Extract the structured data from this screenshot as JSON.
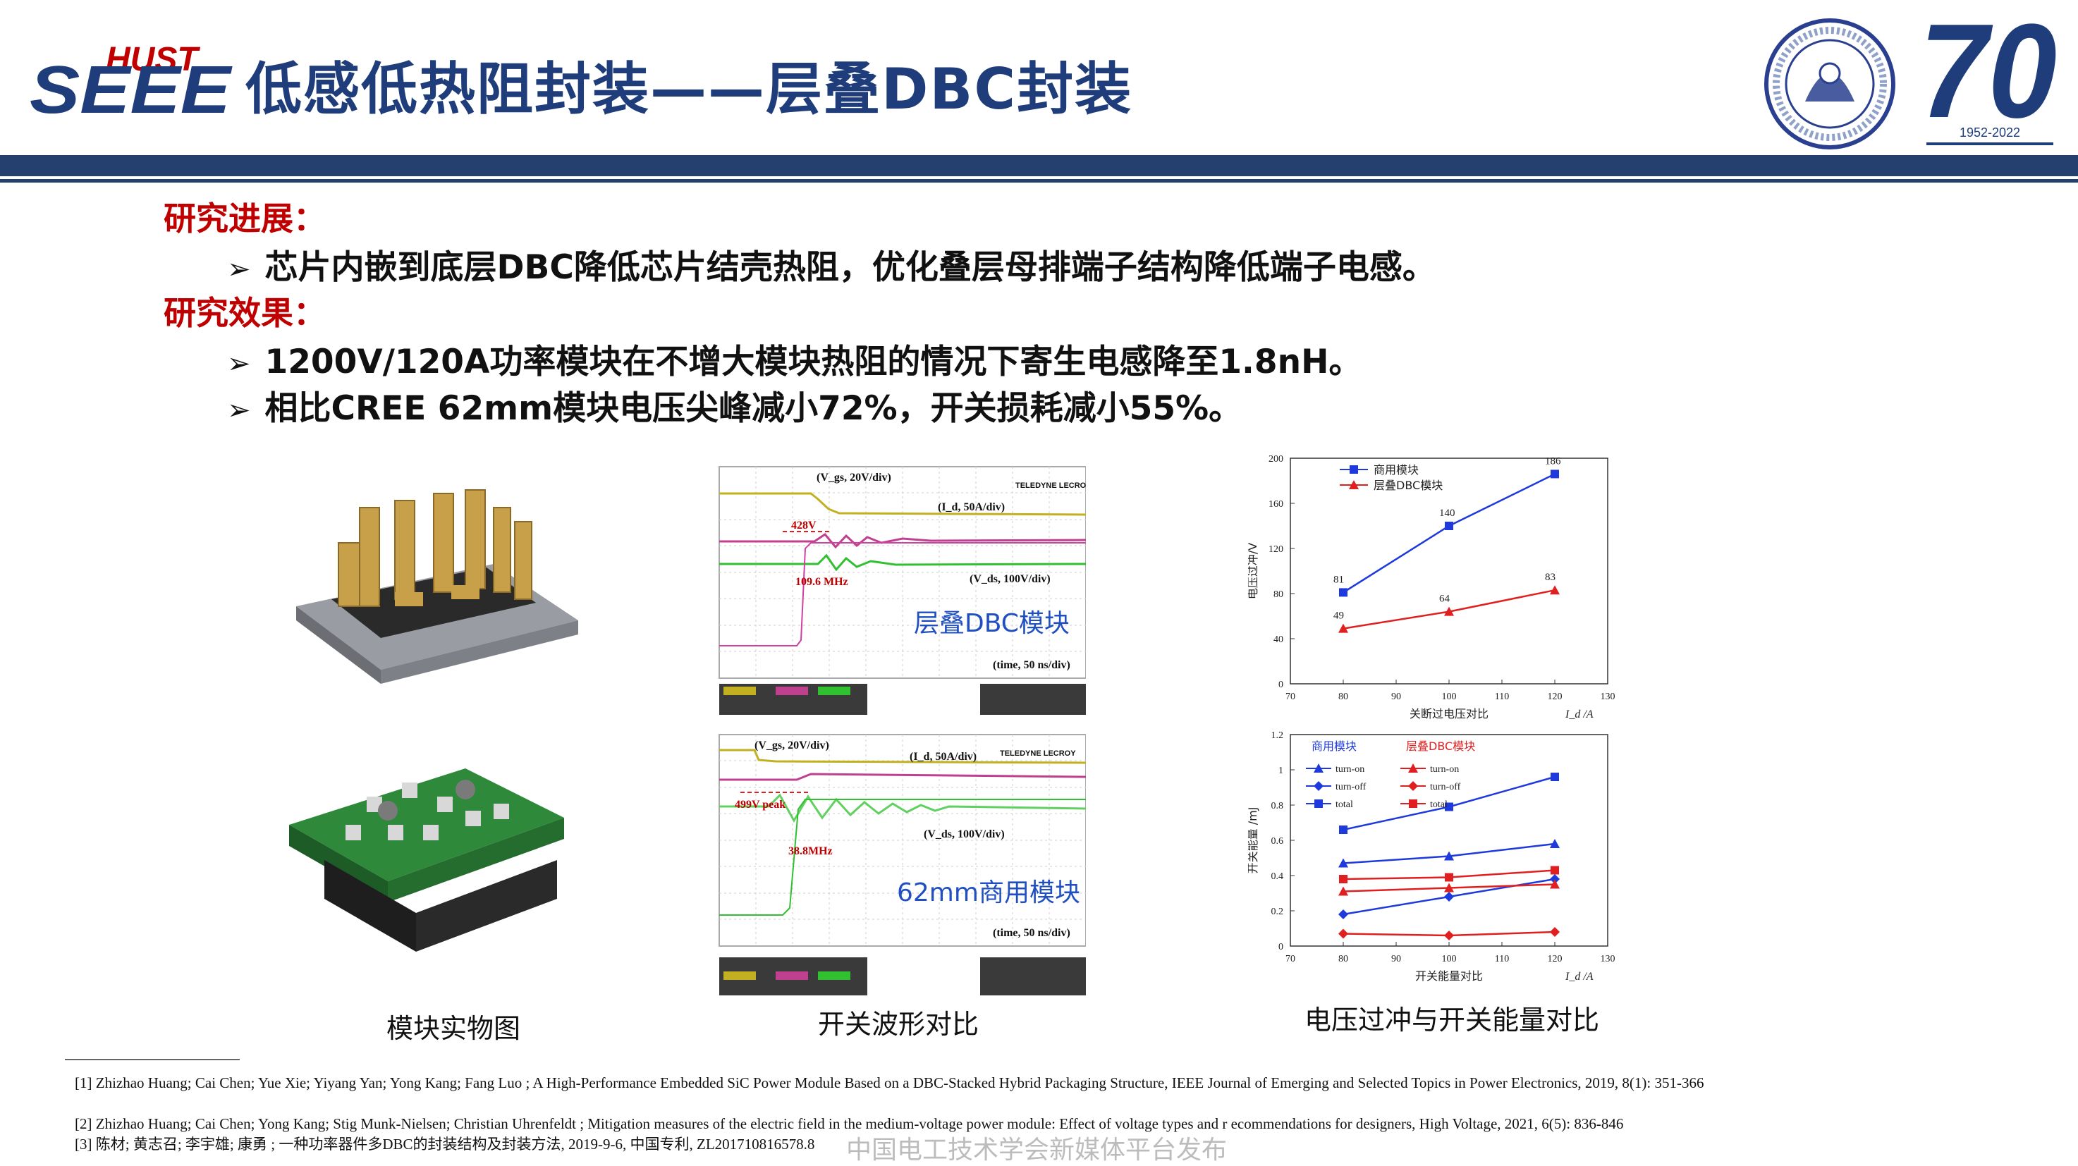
{
  "header": {
    "logo_hust": "HUST",
    "logo_seee": "SEEE",
    "title": "低感低热阻封装——层叠DBC封装",
    "anniv_number": "70",
    "anniv_years": "1952-2022"
  },
  "sections": [
    {
      "heading": "研究进展：",
      "bullets": [
        "芯片内嵌到底层DBC降低芯片结壳热阻，优化叠层母排端子结构降低端子电感。"
      ]
    },
    {
      "heading": "研究效果：",
      "bullets": [
        "1200V/120A功率模块在不增大模块热阻的情况下寄生电感降至1.8nH。",
        "相比CREE 62mm模块电压尖峰减小72%，开关损耗减小55%。"
      ]
    }
  ],
  "figures": {
    "photo_caption": "模块实物图",
    "waveform_caption": "开关波形对比",
    "comparison_caption": "电压过冲与开关能量对比",
    "waveform_top": {
      "label": "层叠DBC模块",
      "vgs": "(V_gs, 20V/div)",
      "id": "(I_d, 50A/div)",
      "vds": "(V_ds, 100V/div)",
      "time": "(time, 50 ns/div)",
      "peak": "428V",
      "freq": "109.6 MHz",
      "brand": "TELEDYNE LECROY"
    },
    "waveform_bottom": {
      "label": "62mm商用模块",
      "vgs": "(V_gs, 20V/div)",
      "id": "(I_d, 50A/div)",
      "vds": "(V_ds, 100V/div)",
      "time": "(time, 50 ns/div)",
      "peak": "499V peak",
      "freq": "38.8MHz",
      "brand": "TELEDYNE LECROY"
    }
  },
  "chart_data": [
    {
      "type": "line",
      "xlabel": "关断过电压对比",
      "xunit": "I_d /A",
      "ylabel": "电压过冲/V",
      "xlim": [
        70,
        130
      ],
      "ylim": [
        0,
        200
      ],
      "xticks": [
        70,
        80,
        90,
        100,
        110,
        120,
        130
      ],
      "yticks": [
        0,
        40,
        80,
        120,
        160,
        200
      ],
      "x": [
        80,
        100,
        120
      ],
      "series": [
        {
          "name": "商用模块",
          "values": [
            81,
            140,
            186
          ],
          "color": "#1e3adc",
          "marker": "square"
        },
        {
          "name": "层叠DBC模块",
          "values": [
            49,
            64,
            83
          ],
          "color": "#e02020",
          "marker": "triangle"
        }
      ],
      "legend": "top-left"
    },
    {
      "type": "line",
      "xlabel": "开关能量对比",
      "xunit": "I_d /A",
      "ylabel": "开关能量 /mJ",
      "xlim": [
        70,
        130
      ],
      "ylim": [
        0,
        1.2
      ],
      "xticks": [
        70,
        80,
        90,
        100,
        110,
        120,
        130
      ],
      "yticks": [
        0,
        0.2,
        0.4,
        0.6,
        0.8,
        1,
        1.2
      ],
      "x": [
        80,
        100,
        120
      ],
      "legend_groups": [
        "商用模块",
        "层叠DBC模块"
      ],
      "series": [
        {
          "name": "turn-on",
          "group": "商用模块",
          "values": [
            0.47,
            0.51,
            0.58
          ],
          "color": "#1e3adc",
          "marker": "triangle"
        },
        {
          "name": "turn-off",
          "group": "商用模块",
          "values": [
            0.18,
            0.28,
            0.38
          ],
          "color": "#1e3adc",
          "marker": "diamond"
        },
        {
          "name": "total",
          "group": "商用模块",
          "values": [
            0.66,
            0.79,
            0.96
          ],
          "color": "#1e3adc",
          "marker": "square"
        },
        {
          "name": "turn-on",
          "group": "层叠DBC模块",
          "values": [
            0.31,
            0.33,
            0.35
          ],
          "color": "#e02020",
          "marker": "triangle"
        },
        {
          "name": "turn-off",
          "group": "层叠DBC模块",
          "values": [
            0.07,
            0.06,
            0.08
          ],
          "color": "#e02020",
          "marker": "diamond"
        },
        {
          "name": "total",
          "group": "层叠DBC模块",
          "values": [
            0.38,
            0.39,
            0.43
          ],
          "color": "#e02020",
          "marker": "square"
        }
      ],
      "legend": "top-left"
    }
  ],
  "references": [
    "[1] Zhizhao Huang; Cai Chen; Yue Xie; Yiyang Yan; Yong Kang; Fang Luo ; A High-Performance Embedded SiC Power Module Based on a DBC-Stacked Hybrid Packaging Structure, IEEE Journal of Emerging and Selected Topics in Power Electronics, 2019, 8(1): 351-366",
    "[2] Zhizhao Huang; Cai Chen; Yong Kang; Stig Munk-Nielsen; Christian Uhrenfeldt ; Mitigation measures of the electric field in the medium-voltage power module: Effect of voltage types and r ecommendations for designers, High Voltage, 2021, 6(5): 836-846",
    "[3] 陈材; 黄志召; 李宇雄; 康勇 ; 一种功率器件多DBC的封装结构及封装方法, 2019-9-6, 中国专利, ZL201710816578.8"
  ],
  "watermark": "中国电工技术学会新媒体平台发布"
}
